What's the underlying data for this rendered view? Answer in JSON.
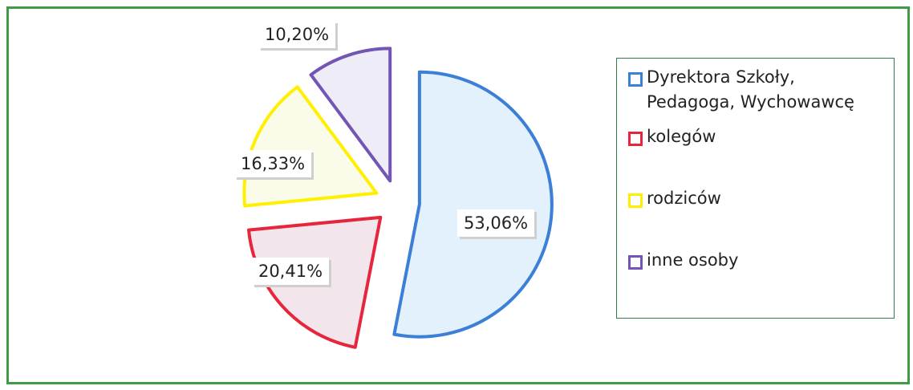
{
  "chart_data": {
    "type": "pie",
    "categories": [
      "Dyrektora Szkoły, Pedagoga, Wychowawcę",
      "kolegów",
      "rodziców",
      "inne osoby"
    ],
    "values": [
      53.06,
      20.41,
      16.33,
      10.2
    ],
    "value_labels": [
      "53,06%",
      "20,41%",
      "16,33%",
      "10,20%"
    ],
    "colors": [
      "#3c7fd6",
      "#e5263d",
      "#fff000",
      "#7355b5"
    ],
    "fills": [
      "#e2f1fb",
      "#f3e5ec",
      "#fbfbe9",
      "#eeecf7"
    ],
    "legend": "right"
  }
}
